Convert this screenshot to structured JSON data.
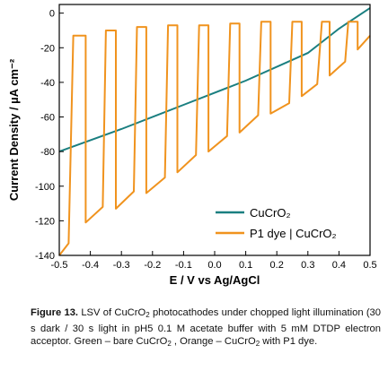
{
  "chart_data": {
    "type": "line",
    "xlabel": "E / V vs Ag/AgCl",
    "ylabel": "Current Density / µA cm⁻²",
    "xlim": [
      -0.5,
      0.5
    ],
    "ylim": [
      -140,
      5
    ],
    "xticks": [
      "-0.5",
      "-0.4",
      "-0.3",
      "-0.2",
      "-0.1",
      "0.0",
      "0.1",
      "0.2",
      "0.3",
      "0.4",
      "0.5"
    ],
    "yticks": [
      "0",
      "-20",
      "-40",
      "-60",
      "-80",
      "-100",
      "-120",
      "-140"
    ],
    "grid": false,
    "legend_position": "bottom-right",
    "series": [
      {
        "name": "CuCrO₂",
        "color": "#1a7f80",
        "x": [
          -0.5,
          -0.3,
          -0.1,
          0.1,
          0.3,
          0.4,
          0.5
        ],
        "y": [
          -80,
          -67,
          -53,
          -39,
          -23,
          -9,
          3
        ]
      },
      {
        "name": "P1 dye | CuCrO₂",
        "color": "#f0931e",
        "light_segments": [
          {
            "x": [
              -0.5,
              -0.47
            ],
            "y": [
              -140,
              -133
            ]
          },
          {
            "x": [
              -0.415,
              -0.36
            ],
            "y": [
              -121,
              -112
            ]
          },
          {
            "x": [
              -0.318,
              -0.26
            ],
            "y": [
              -113,
              -103
            ]
          },
          {
            "x": [
              -0.22,
              -0.16
            ],
            "y": [
              -104,
              -95
            ]
          },
          {
            "x": [
              -0.12,
              -0.06
            ],
            "y": [
              -92,
              -82
            ]
          },
          {
            "x": [
              -0.02,
              0.04
            ],
            "y": [
              -80,
              -71
            ]
          },
          {
            "x": [
              0.08,
              0.14
            ],
            "y": [
              -69,
              -59
            ]
          },
          {
            "x": [
              0.18,
              0.24
            ],
            "y": [
              -58,
              -52
            ]
          },
          {
            "x": [
              0.28,
              0.33
            ],
            "y": [
              -48,
              -41
            ]
          },
          {
            "x": [
              0.37,
              0.42
            ],
            "y": [
              -36,
              -28
            ]
          },
          {
            "x": [
              0.46,
              0.5
            ],
            "y": [
              -21,
              -13
            ]
          }
        ],
        "dark_segments": [
          {
            "x": [
              -0.455,
              -0.415
            ],
            "y": [
              -13,
              -13
            ]
          },
          {
            "x": [
              -0.35,
              -0.318
            ],
            "y": [
              -10,
              -10
            ]
          },
          {
            "x": [
              -0.25,
              -0.22
            ],
            "y": [
              -8,
              -8
            ]
          },
          {
            "x": [
              -0.15,
              -0.12
            ],
            "y": [
              -7,
              -7
            ]
          },
          {
            "x": [
              -0.05,
              -0.02
            ],
            "y": [
              -7,
              -7
            ]
          },
          {
            "x": [
              0.05,
              0.08
            ],
            "y": [
              -6,
              -6
            ]
          },
          {
            "x": [
              0.15,
              0.18
            ],
            "y": [
              -5,
              -5
            ]
          },
          {
            "x": [
              0.25,
              0.28
            ],
            "y": [
              -5,
              -5
            ]
          },
          {
            "x": [
              0.345,
              0.37
            ],
            "y": [
              -5,
              -5
            ]
          },
          {
            "x": [
              0.43,
              0.46
            ],
            "y": [
              -5,
              -5
            ]
          }
        ]
      }
    ]
  },
  "caption": {
    "label": "Figure 13.",
    "text_1": " LSV of CuCrO",
    "sub_1": "2",
    "text_2": " photocathodes under chopped light illumination (30 s dark / 30 s light in pH5 0.1 M acetate buffer with 5 mM DTDP electron acceptor. Green – bare CuCrO",
    "sub_2": "2",
    "text_3": " , Orange – CuCrO",
    "sub_3": "2",
    "text_4": " with P1 dye."
  }
}
